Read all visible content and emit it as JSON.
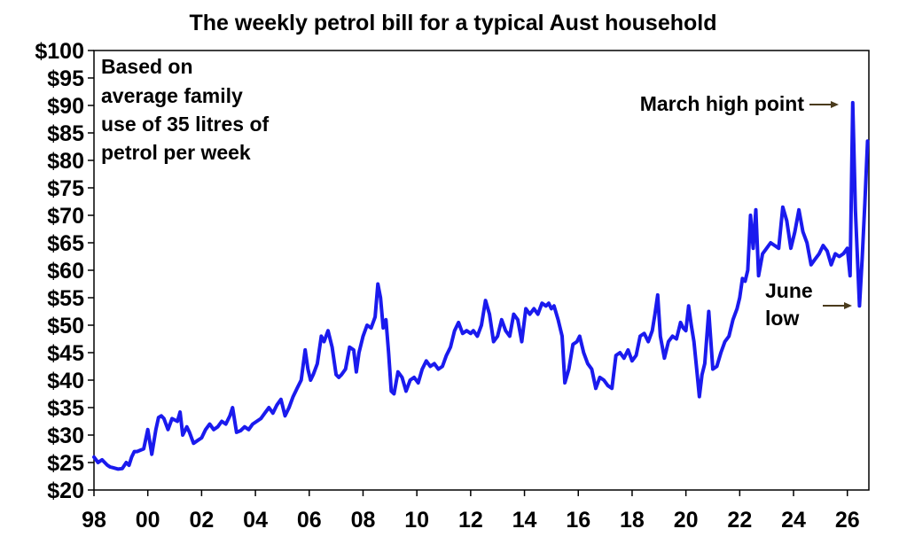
{
  "chart_data": {
    "type": "line",
    "title": "The weekly petrol bill for a typical Aust household",
    "xlabel": "",
    "ylabel": "",
    "x_tick_labels": [
      "98",
      "00",
      "02",
      "04",
      "06",
      "08",
      "10",
      "12",
      "14",
      "16",
      "18",
      "20",
      "22",
      "24",
      "26"
    ],
    "x_tick_years": [
      1998,
      2000,
      2002,
      2004,
      2006,
      2008,
      2010,
      2012,
      2014,
      2016,
      2018,
      2020,
      2022,
      2024,
      2026
    ],
    "xlim": [
      1998,
      2026.8
    ],
    "ylim": [
      20,
      100
    ],
    "y_ticks": [
      20,
      25,
      30,
      35,
      40,
      45,
      50,
      55,
      60,
      65,
      70,
      75,
      80,
      85,
      90,
      95,
      100
    ],
    "y_tick_labels": [
      "$20",
      "$25",
      "$30",
      "$35",
      "$40",
      "$45",
      "$50",
      "$55",
      "$60",
      "$65",
      "$70",
      "$75",
      "$80",
      "$85",
      "$90",
      "$95",
      "$100"
    ],
    "grid": false,
    "series": [
      {
        "line_color": "#1a1aee",
        "x": [
          1998.0,
          1998.15,
          1998.3,
          1998.5,
          1998.6,
          1998.75,
          1998.9,
          1999.05,
          1999.2,
          1999.3,
          1999.4,
          1999.5,
          1999.6,
          1999.7,
          1999.85,
          2000.0,
          2000.15,
          2000.3,
          2000.4,
          2000.5,
          2000.6,
          2000.75,
          2000.9,
          2001.1,
          2001.2,
          2001.3,
          2001.45,
          2001.55,
          2001.7,
          2001.85,
          2002.0,
          2002.15,
          2002.3,
          2002.45,
          2002.6,
          2002.75,
          2002.9,
          2003.05,
          2003.15,
          2003.3,
          2003.45,
          2003.6,
          2003.75,
          2003.9,
          2004.05,
          2004.2,
          2004.35,
          2004.5,
          2004.65,
          2004.8,
          2004.95,
          2005.1,
          2005.25,
          2005.4,
          2005.55,
          2005.7,
          2005.85,
          2005.95,
          2006.05,
          2006.15,
          2006.3,
          2006.45,
          2006.55,
          2006.7,
          2006.85,
          2007.0,
          2007.1,
          2007.2,
          2007.35,
          2007.5,
          2007.65,
          2007.75,
          2007.85,
          2008.0,
          2008.15,
          2008.3,
          2008.45,
          2008.55,
          2008.65,
          2008.75,
          2008.85,
          2008.95,
          2009.05,
          2009.15,
          2009.3,
          2009.45,
          2009.6,
          2009.75,
          2009.9,
          2010.05,
          2010.2,
          2010.35,
          2010.5,
          2010.65,
          2010.8,
          2010.95,
          2011.1,
          2011.25,
          2011.4,
          2011.55,
          2011.7,
          2011.85,
          2012.0,
          2012.1,
          2012.25,
          2012.4,
          2012.55,
          2012.7,
          2012.85,
          2013.0,
          2013.15,
          2013.3,
          2013.45,
          2013.6,
          2013.75,
          2013.9,
          2014.05,
          2014.2,
          2014.35,
          2014.5,
          2014.65,
          2014.8,
          2014.9,
          2015.0,
          2015.1,
          2015.25,
          2015.4,
          2015.5,
          2015.65,
          2015.8,
          2015.95,
          2016.05,
          2016.2,
          2016.35,
          2016.5,
          2016.65,
          2016.8,
          2016.95,
          2017.1,
          2017.25,
          2017.4,
          2017.55,
          2017.7,
          2017.85,
          2018.0,
          2018.15,
          2018.3,
          2018.45,
          2018.6,
          2018.75,
          2018.85,
          2018.95,
          2019.05,
          2019.2,
          2019.35,
          2019.5,
          2019.65,
          2019.8,
          2019.9,
          2020.0,
          2020.1,
          2020.2,
          2020.3,
          2020.4,
          2020.5,
          2020.6,
          2020.7,
          2020.85,
          2021.0,
          2021.15,
          2021.3,
          2021.45,
          2021.6,
          2021.75,
          2021.9,
          2022.0,
          2022.1,
          2022.2,
          2022.3,
          2022.4,
          2022.5,
          2022.6,
          2022.7,
          2022.85,
          2023.0,
          2023.15,
          2023.3,
          2023.45,
          2023.6,
          2023.75,
          2023.9,
          2024.05,
          2024.2,
          2024.35,
          2024.5,
          2024.65,
          2024.8,
          2024.95,
          2025.1,
          2025.25,
          2025.4,
          2025.55,
          2025.7,
          2025.85,
          2026.0,
          2026.1,
          2026.2,
          2026.3,
          2026.45,
          2026.55,
          2026.65,
          2026.75
        ],
        "values": [
          26,
          25,
          25.5,
          24.5,
          24.2,
          24,
          23.8,
          23.9,
          25,
          24.5,
          26,
          27,
          27,
          27.2,
          27.5,
          31,
          26.5,
          31,
          33.2,
          33.5,
          33,
          31,
          33,
          32.5,
          34.2,
          30,
          31.5,
          30.5,
          28.5,
          29,
          29.5,
          31,
          32,
          31,
          31.5,
          32.5,
          32,
          33.5,
          35,
          30.5,
          30.8,
          31.5,
          31,
          32,
          32.5,
          33,
          34,
          35,
          34,
          35.5,
          36.5,
          33.5,
          35,
          37,
          38.5,
          40,
          45.5,
          42,
          40,
          41,
          43,
          48,
          47,
          49,
          46,
          41,
          40.5,
          41,
          42,
          46,
          45.5,
          41.5,
          45,
          48,
          50,
          49.5,
          51.5,
          57.5,
          55,
          49.5,
          51,
          45,
          38,
          37.5,
          41.5,
          40.5,
          38,
          40,
          40.5,
          39.5,
          42,
          43.5,
          42.5,
          43,
          42,
          42.5,
          44.5,
          46,
          49,
          50.5,
          48.5,
          49,
          48.5,
          49,
          48,
          50,
          54.5,
          52,
          47,
          48,
          51,
          49,
          48,
          52,
          51,
          47,
          53,
          52,
          53,
          52,
          54,
          53.5,
          54,
          53,
          53.5,
          51,
          48,
          39.5,
          42,
          46.5,
          47,
          48,
          45,
          43,
          42,
          38.5,
          40.5,
          40,
          39,
          38.5,
          44.5,
          45,
          44,
          45.5,
          43.5,
          44.5,
          48,
          48.5,
          47,
          49,
          52,
          55.5,
          48,
          44,
          47,
          48,
          47.5,
          50.5,
          49.5,
          49,
          53.5,
          50,
          47,
          42,
          37,
          41,
          43,
          52.5,
          42,
          42.5,
          45,
          47,
          48,
          51,
          53,
          55,
          58.5,
          58,
          60,
          70,
          64,
          71,
          59,
          63,
          64,
          65,
          64.5,
          64,
          71.5,
          69,
          64,
          67,
          71,
          67,
          65,
          61,
          62,
          63,
          64.5,
          63.5,
          61,
          63,
          62.5,
          63,
          64,
          59,
          90.5,
          71,
          53.5,
          62,
          72,
          83.5
        ]
      }
    ],
    "annotations": {
      "note_lines": [
        "Based on",
        "average family",
        "use of 35 litres of",
        "petrol per week"
      ],
      "march_label": "March high point",
      "june_label_lines": [
        "June",
        "low"
      ]
    },
    "colors": {
      "line": "#1a1aee",
      "arrow": "#4a3b1c",
      "axis": "#000000"
    }
  }
}
